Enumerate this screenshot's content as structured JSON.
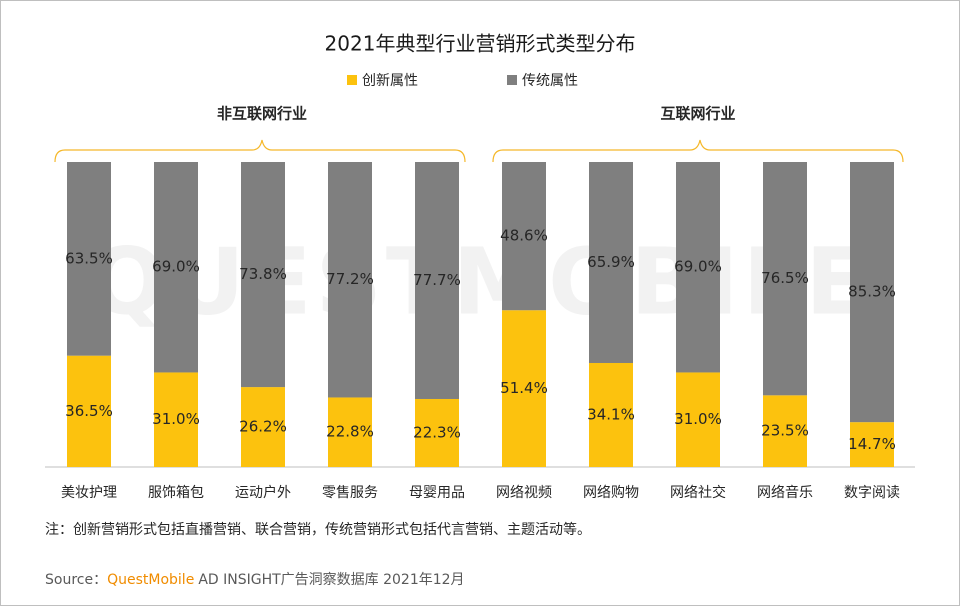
{
  "chart_data": {
    "type": "stacked_bar",
    "title": "2021年典型行业营销形式类型分布",
    "categories": [
      "美妆护理",
      "服饰箱包",
      "运动户外",
      "零售服务",
      "母婴用品",
      "网络视频",
      "网络购物",
      "网络社交",
      "网络音乐",
      "数字阅读"
    ],
    "series": [
      {
        "name": "创新属性",
        "color": "#fcc20e",
        "values": [
          36.5,
          31.0,
          26.2,
          22.8,
          22.3,
          51.4,
          34.1,
          31.0,
          23.5,
          14.7
        ],
        "value_labels": [
          "36.5%",
          "31.0%",
          "26.2%",
          "22.8%",
          "22.3%",
          "51.4%",
          "34.1%",
          "31.0%",
          "23.5%",
          "14.7%"
        ]
      },
      {
        "name": "传统属性",
        "color": "#7f7f7f",
        "values": [
          63.5,
          69.0,
          73.8,
          77.2,
          77.7,
          48.6,
          65.9,
          69.0,
          76.5,
          85.3
        ],
        "value_labels": [
          "63.5%",
          "69.0%",
          "73.8%",
          "77.2%",
          "77.7%",
          "48.6%",
          "65.9%",
          "69.0%",
          "76.5%",
          "85.3%"
        ]
      }
    ],
    "groups": [
      "非互联网行业",
      "互联网行业"
    ],
    "watermark": "QUESTMOBILE",
    "note": "注：创新营销形式包括直播营销、联合营销，传统营销形式包括代言营销、主题活动等。",
    "source": {
      "prefix": "Source：",
      "brand": "QuestMobile",
      "text": "AD INSIGHT广告洞察数据库 2021年12月"
    }
  }
}
